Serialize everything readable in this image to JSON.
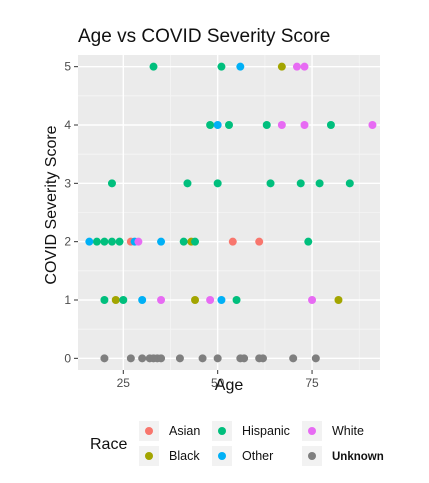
{
  "chart_data": {
    "type": "scatter",
    "title": "Age vs COVID Severity Score",
    "xlabel": "Age",
    "ylabel": "COVID Severity Score",
    "xlim": [
      13,
      93
    ],
    "ylim": [
      -0.2,
      5.2
    ],
    "xticks": [
      "25",
      "50",
      "75"
    ],
    "xtick_values": [
      25,
      50,
      75
    ],
    "yticks": [
      "0",
      "1",
      "2",
      "3",
      "4",
      "5"
    ],
    "ytick_values": [
      0,
      1,
      2,
      3,
      4,
      5
    ],
    "grid": true,
    "legend": {
      "title": "Race",
      "placement": "bottom",
      "entries": [
        {
          "name": "Asian",
          "color": "#F8766D"
        },
        {
          "name": "Black",
          "color": "#A3A500"
        },
        {
          "name": "Hispanic",
          "color": "#00BF7D"
        },
        {
          "name": "Other",
          "color": "#00B0F6"
        },
        {
          "name": "White",
          "color": "#E76BF3"
        },
        {
          "name": "Unknown",
          "color": "#7F7F7F"
        }
      ]
    },
    "series": [
      {
        "name": "Asian",
        "color": "#F8766D",
        "x": [
          27,
          54,
          61
        ],
        "y": [
          2,
          2,
          2
        ]
      },
      {
        "name": "Black",
        "color": "#A3A500",
        "x": [
          23,
          43,
          44,
          67,
          82
        ],
        "y": [
          1,
          2,
          1,
          5,
          1
        ]
      },
      {
        "name": "Hispanic",
        "color": "#00BF7D",
        "x": [
          18,
          20,
          22,
          24,
          20,
          25,
          22,
          33,
          42,
          41,
          44,
          55,
          48,
          50,
          53,
          51,
          63,
          64,
          72,
          74,
          77,
          80,
          85
        ],
        "y": [
          2,
          2,
          2,
          2,
          1,
          1,
          3,
          5,
          3,
          2,
          2,
          1,
          4,
          3,
          4,
          5,
          4,
          3,
          3,
          2,
          3,
          4,
          3
        ]
      },
      {
        "name": "Other",
        "color": "#00B0F6",
        "x": [
          16,
          28,
          35,
          30,
          51,
          50,
          56
        ],
        "y": [
          2,
          2,
          2,
          1,
          1,
          4,
          5
        ]
      },
      {
        "name": "White",
        "color": "#E76BF3",
        "x": [
          29,
          35,
          48,
          67,
          71,
          73,
          73,
          75,
          91
        ],
        "y": [
          2,
          1,
          1,
          4,
          5,
          5,
          4,
          1,
          4
        ]
      },
      {
        "name": "Unknown",
        "color": "#7F7F7F",
        "x": [
          20,
          27,
          30,
          32,
          33,
          34,
          35,
          40,
          46,
          50,
          56,
          57,
          61,
          62,
          70,
          76
        ],
        "y": [
          0,
          0,
          0,
          0,
          0,
          0,
          0,
          0,
          0,
          0,
          0,
          0,
          0,
          0,
          0,
          0
        ]
      }
    ]
  },
  "colors": {
    "panel_background": "#EBEBEB",
    "grid_major": "#FFFFFF",
    "text": "#111111",
    "tick_text": "#4D4D4D"
  }
}
